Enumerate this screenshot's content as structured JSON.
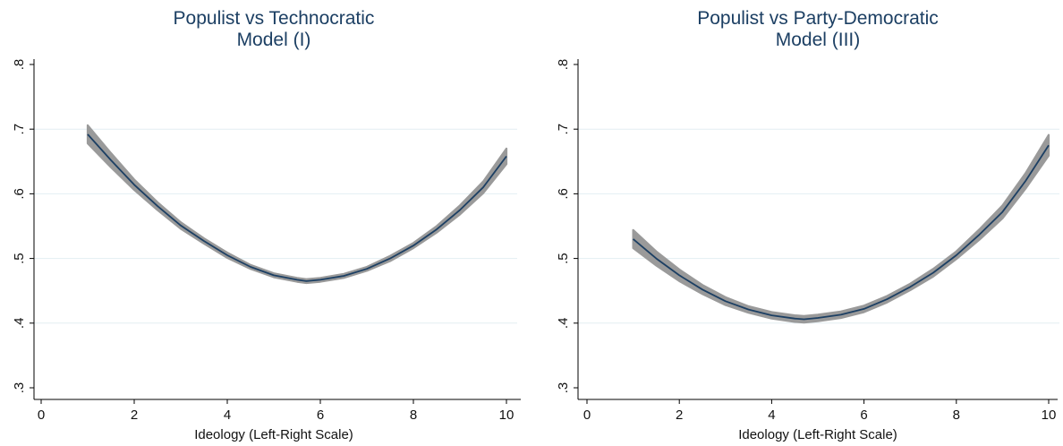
{
  "colors": {
    "line": "#1c3f63",
    "band": "#9a9a9a",
    "grid": "#e3eef2",
    "title": "#1c3f63"
  },
  "chart_data": [
    {
      "type": "line",
      "title_lines": [
        "Populist vs Technocratic",
        "Model (I)"
      ],
      "xlabel": "Ideology (Left-Right Scale)",
      "ylabel": "",
      "xlim": [
        0,
        10
      ],
      "ylim": [
        0.3,
        0.8
      ],
      "x_ticks": [
        0,
        2,
        4,
        6,
        8,
        10
      ],
      "x_tick_labels": [
        "0",
        "2",
        "4",
        "6",
        "8",
        "10"
      ],
      "y_ticks": [
        0.3,
        0.4,
        0.5,
        0.6,
        0.7,
        0.8
      ],
      "y_tick_labels": [
        ".3",
        ".4",
        ".5",
        ".6",
        ".7",
        ".8"
      ],
      "grid": true,
      "series": [
        {
          "x": [
            1,
            1.5,
            2,
            2.5,
            3,
            3.5,
            4,
            4.5,
            5,
            5.5,
            5.7,
            6,
            6.5,
            7,
            7.5,
            8,
            8.5,
            9,
            9.5,
            10
          ],
          "y": [
            0.692,
            0.652,
            0.614,
            0.581,
            0.551,
            0.527,
            0.505,
            0.487,
            0.474,
            0.467,
            0.465,
            0.467,
            0.473,
            0.484,
            0.5,
            0.52,
            0.545,
            0.575,
            0.61,
            0.658
          ],
          "ci_halfwidth": [
            0.014,
            0.011,
            0.008,
            0.006,
            0.005,
            0.004,
            0.004,
            0.003,
            0.003,
            0.003,
            0.003,
            0.003,
            0.003,
            0.003,
            0.004,
            0.004,
            0.005,
            0.007,
            0.009,
            0.012
          ]
        }
      ]
    },
    {
      "type": "line",
      "title_lines": [
        "Populist vs Party-Democratic",
        "Model (III)"
      ],
      "xlabel": "Ideology (Left-Right Scale)",
      "ylabel": "",
      "xlim": [
        0,
        10
      ],
      "ylim": [
        0.3,
        0.8
      ],
      "x_ticks": [
        0,
        2,
        4,
        6,
        8,
        10
      ],
      "x_tick_labels": [
        "0",
        "2",
        "4",
        "6",
        "8",
        "10"
      ],
      "y_ticks": [
        0.3,
        0.4,
        0.5,
        0.6,
        0.7,
        0.8
      ],
      "y_tick_labels": [
        ".3",
        ".4",
        ".5",
        ".6",
        ".7",
        ".8"
      ],
      "grid": true,
      "series": [
        {
          "x": [
            1,
            1.5,
            2,
            2.5,
            3,
            3.5,
            4,
            4.5,
            4.7,
            5,
            5.5,
            6,
            6.5,
            7,
            7.5,
            8,
            8.5,
            9,
            9.5,
            10
          ],
          "y": [
            0.53,
            0.5,
            0.474,
            0.452,
            0.434,
            0.421,
            0.412,
            0.407,
            0.406,
            0.408,
            0.413,
            0.422,
            0.437,
            0.456,
            0.478,
            0.505,
            0.537,
            0.572,
            0.62,
            0.675
          ],
          "ci_halfwidth": [
            0.014,
            0.011,
            0.009,
            0.007,
            0.006,
            0.005,
            0.005,
            0.005,
            0.005,
            0.005,
            0.005,
            0.005,
            0.005,
            0.005,
            0.006,
            0.006,
            0.008,
            0.01,
            0.012,
            0.016
          ]
        }
      ]
    }
  ]
}
